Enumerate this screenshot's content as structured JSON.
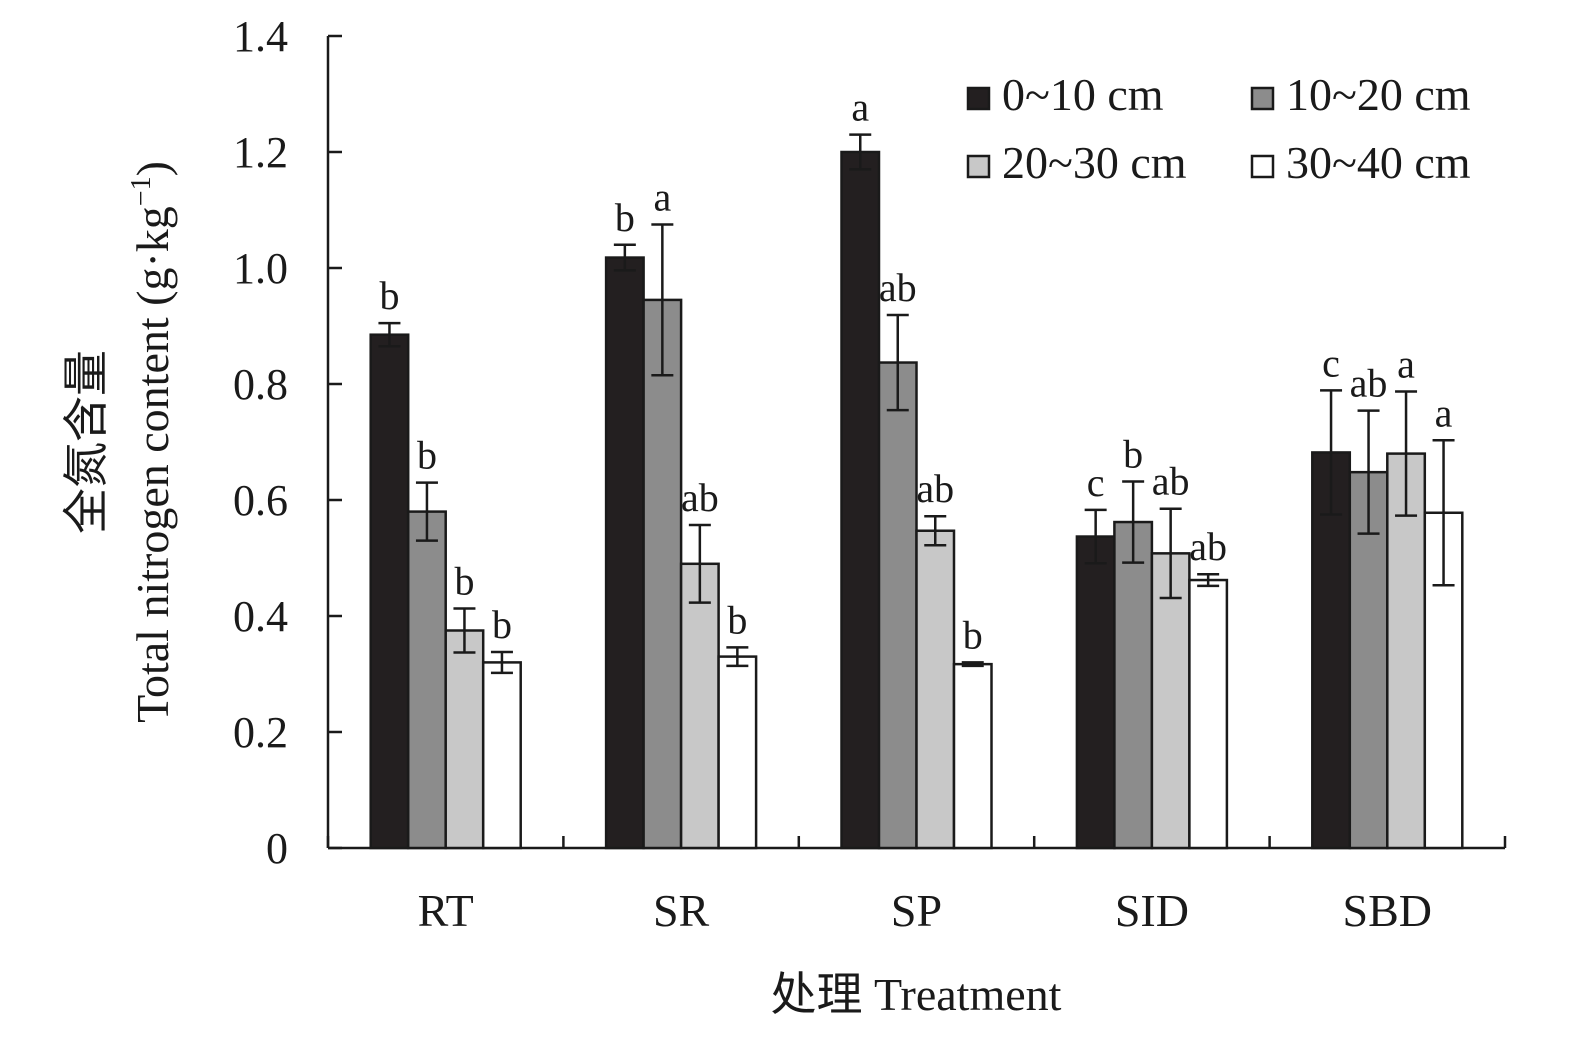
{
  "chart_data": {
    "type": "bar",
    "xlabel": "处理 Treatment",
    "ylabel_cn": "全氮含量",
    "ylabel_en": "Total nitrogen content (g·kg",
    "ylabel_exp": "−1",
    "ylabel_close": ")",
    "ylim": [
      0,
      1.4
    ],
    "yticks": [
      0,
      0.2,
      0.4,
      0.6,
      0.8,
      1.0,
      1.2,
      1.4
    ],
    "ytick_labels": [
      "0",
      "0.2",
      "0.4",
      "0.6",
      "0.8",
      "1.0",
      "1.2",
      "1.4"
    ],
    "categories": [
      "RT",
      "SR",
      "SP",
      "SID",
      "SBD"
    ],
    "legend_position": "top-right",
    "series": [
      {
        "name": "0~10 cm",
        "color": "#231f20",
        "values": [
          0.885,
          1.018,
          1.2,
          0.537,
          0.682
        ],
        "errors": [
          0.02,
          0.022,
          0.03,
          0.046,
          0.107
        ],
        "labels": [
          "b",
          "b",
          "a",
          "c",
          "c"
        ]
      },
      {
        "name": "10~20 cm",
        "color": "#8c8c8c",
        "values": [
          0.58,
          0.945,
          0.837,
          0.562,
          0.648
        ],
        "errors": [
          0.05,
          0.13,
          0.082,
          0.07,
          0.106
        ],
        "labels": [
          "b",
          "a",
          "ab",
          "b",
          "ab"
        ]
      },
      {
        "name": "20~30 cm",
        "color": "#c8c8c8",
        "values": [
          0.375,
          0.49,
          0.547,
          0.508,
          0.68
        ],
        "errors": [
          0.038,
          0.067,
          0.025,
          0.077,
          0.107
        ],
        "labels": [
          "b",
          "ab",
          "ab",
          "ab",
          "a"
        ]
      },
      {
        "name": "30~40 cm",
        "color": "#ffffff",
        "values": [
          0.32,
          0.33,
          0.317,
          0.462,
          0.578
        ],
        "errors": [
          0.018,
          0.016,
          0.003,
          0.01,
          0.125
        ],
        "labels": [
          "b",
          "b",
          "b",
          "ab",
          "a"
        ]
      }
    ]
  }
}
